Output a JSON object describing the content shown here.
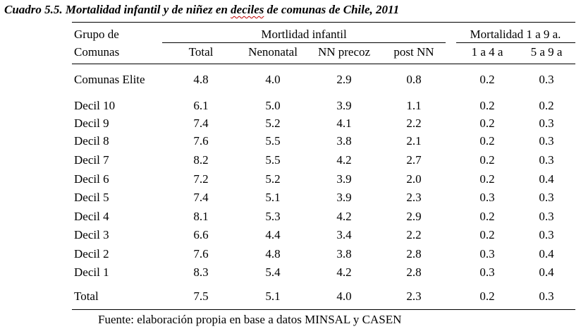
{
  "title": {
    "prefix": "Cuadro 5.5.  Mortalidad infantil y de niñez en ",
    "underlined": "deciles",
    "suffix": " de comunas de Chile, 2011"
  },
  "header": {
    "group_line1": "Grupo de",
    "group_line2": "Comunas",
    "infant_group": "Mortlidad infantil",
    "child_group": "Mortalidad 1 a 9 a.",
    "columns": [
      "Total",
      "Nenonatal",
      "NN precoz",
      "post NN",
      "1 a 4 a",
      "5 a 9 a"
    ]
  },
  "rows": [
    {
      "label": "Comunas Elite",
      "values": [
        "4.8",
        "4.0",
        "2.9",
        "0.8",
        "0.2",
        "0.3"
      ]
    },
    {
      "label": "Decil 10",
      "values": [
        "6.1",
        "5.0",
        "3.9",
        "1.1",
        "0.2",
        "0.2"
      ]
    },
    {
      "label": "Decil 9",
      "values": [
        "7.4",
        "5.2",
        "4.1",
        "2.2",
        "0.2",
        "0.3"
      ]
    },
    {
      "label": "Decil 8",
      "values": [
        "7.6",
        "5.5",
        "3.8",
        "2.1",
        "0.2",
        "0.3"
      ]
    },
    {
      "label": "Decil 7",
      "values": [
        "8.2",
        "5.5",
        "4.2",
        "2.7",
        "0.2",
        "0.3"
      ]
    },
    {
      "label": "Decil 6",
      "values": [
        "7.2",
        "5.2",
        "3.9",
        "2.0",
        "0.2",
        "0.4"
      ]
    },
    {
      "label": "Decil 5",
      "values": [
        "7.4",
        "5.1",
        "3.9",
        "2.3",
        "0.3",
        "0.3"
      ]
    },
    {
      "label": "Decil 4",
      "values": [
        "8.1",
        "5.3",
        "4.2",
        "2.9",
        "0.2",
        "0.3"
      ]
    },
    {
      "label": "Decil 3",
      "values": [
        "6.6",
        "4.4",
        "3.4",
        "2.2",
        "0.2",
        "0.3"
      ]
    },
    {
      "label": "Decil 2",
      "values": [
        "7.6",
        "4.8",
        "3.8",
        "2.8",
        "0.3",
        "0.4"
      ]
    },
    {
      "label": "Decil 1",
      "values": [
        "8.3",
        "5.4",
        "4.2",
        "2.8",
        "0.3",
        "0.4"
      ]
    },
    {
      "label": "Total",
      "values": [
        "7.5",
        "5.1",
        "4.0",
        "2.3",
        "0.2",
        "0.3"
      ]
    }
  ],
  "footer": "Fuente: elaboración propia en base a datos MINSAL y CASEN"
}
